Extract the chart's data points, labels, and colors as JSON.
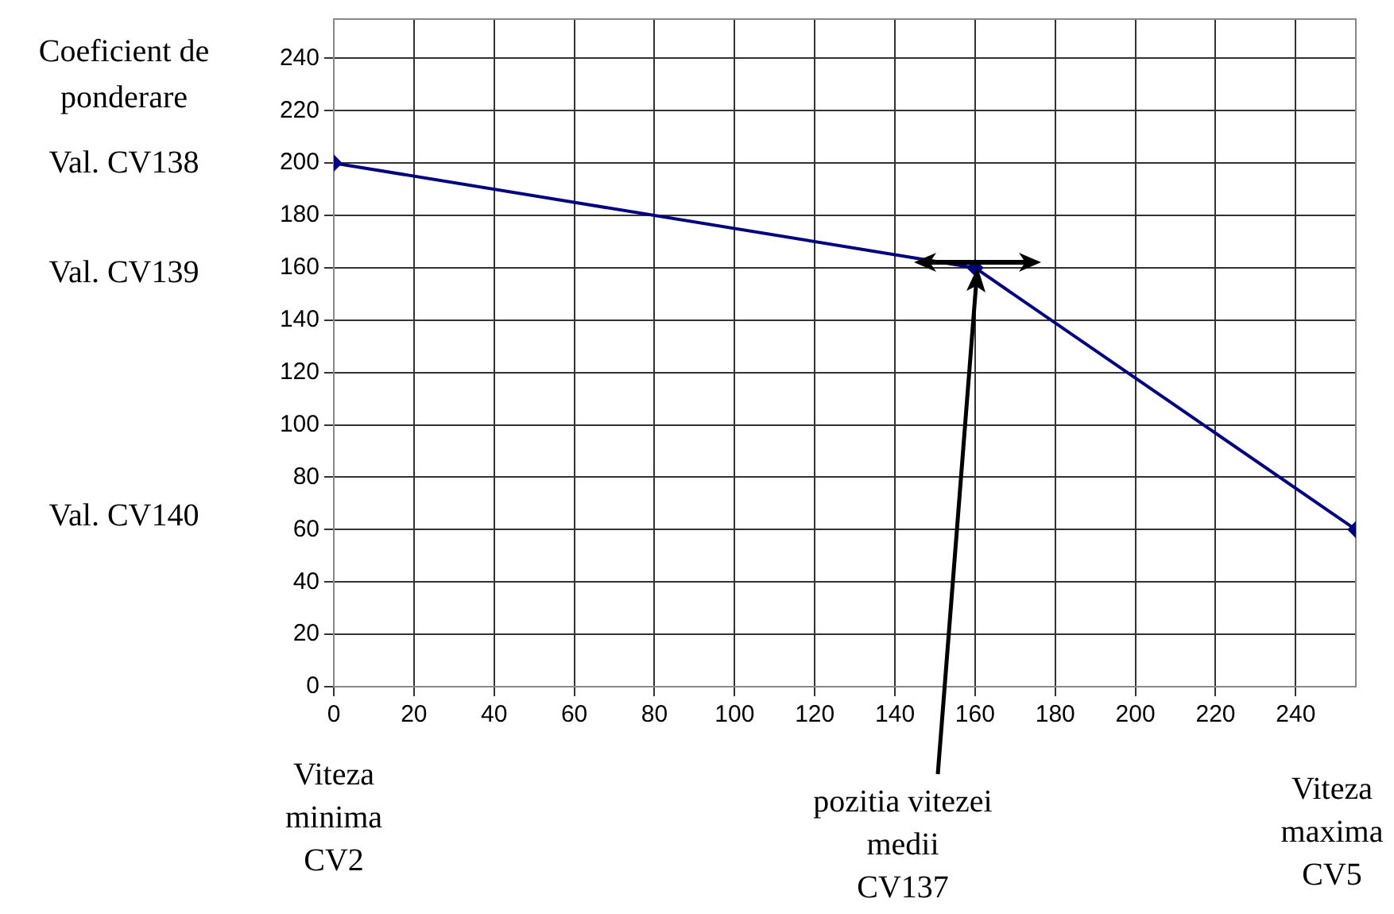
{
  "chart_data": {
    "type": "line",
    "ylabel": "Coeficient de\nponderare",
    "x": [
      0,
      160,
      255
    ],
    "series": [
      {
        "color": "#000080",
        "values": [
          200,
          160,
          60
        ]
      }
    ],
    "xlim": [
      0,
      255
    ],
    "ylim": [
      0,
      255
    ],
    "xticks": [
      0,
      20,
      40,
      60,
      80,
      100,
      120,
      140,
      160,
      180,
      200,
      220,
      240
    ],
    "yticks": [
      0,
      20,
      40,
      60,
      80,
      100,
      120,
      140,
      160,
      180,
      200,
      220,
      240
    ],
    "grid": true,
    "legend": false,
    "marker": "diamond",
    "line_style": "solid",
    "annotations": [
      "Val. CV138",
      "Val. CV139",
      "Val. CV140",
      "Viteza\nminima\nCV2",
      "pozitia vitezei\nmedii\nCV137",
      "Viteza\nmaxima\nCV5"
    ]
  }
}
